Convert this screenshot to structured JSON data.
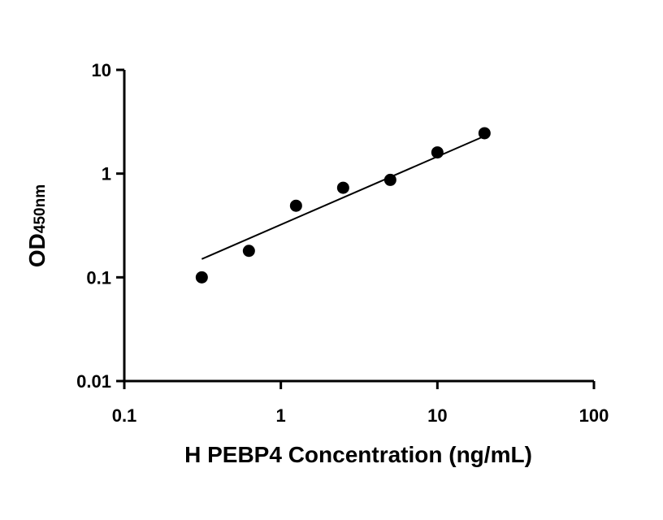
{
  "chart_data": {
    "type": "scatter",
    "xlabel": "H PEBP4 Concentration (ng/mL)",
    "ylabel_main": "OD",
    "ylabel_sub": "450nm",
    "x_scale": "log",
    "y_scale": "log",
    "xlim": [
      0.1,
      100
    ],
    "ylim": [
      0.01,
      10
    ],
    "x_ticks": [
      {
        "value": 0.1,
        "label": "0.1"
      },
      {
        "value": 1,
        "label": "1"
      },
      {
        "value": 10,
        "label": "10"
      },
      {
        "value": 100,
        "label": "100"
      }
    ],
    "y_ticks": [
      {
        "value": 0.01,
        "label": "0.01"
      },
      {
        "value": 0.1,
        "label": "0.1"
      },
      {
        "value": 1,
        "label": "1"
      },
      {
        "value": 10,
        "label": "10"
      }
    ],
    "grid": false,
    "legend": "none",
    "points": [
      {
        "x": 0.3125,
        "y": 0.1
      },
      {
        "x": 0.625,
        "y": 0.18
      },
      {
        "x": 1.25,
        "y": 0.49
      },
      {
        "x": 2.5,
        "y": 0.73
      },
      {
        "x": 5,
        "y": 0.87
      },
      {
        "x": 10,
        "y": 1.6
      },
      {
        "x": 20,
        "y": 2.45
      }
    ],
    "fit_line": {
      "x": [
        0.3125,
        20
      ],
      "y": [
        0.15,
        2.3
      ]
    },
    "colors": {
      "points": "#000000",
      "line": "#000000",
      "axes": "#000000"
    }
  }
}
